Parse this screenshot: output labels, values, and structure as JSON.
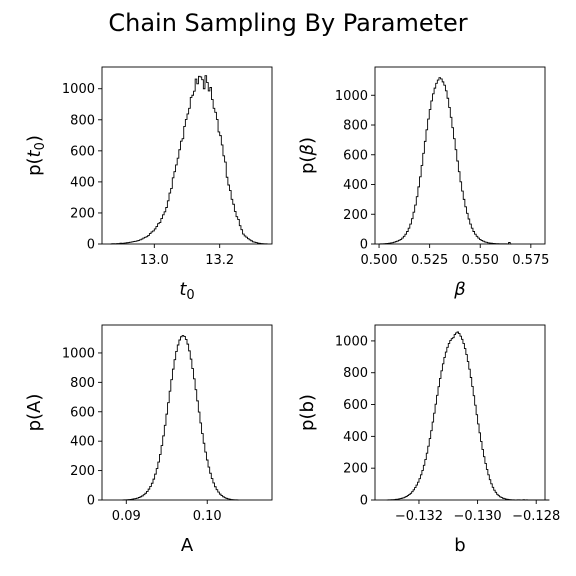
{
  "figure": {
    "title": "Chain Sampling By Parameter"
  },
  "chart_data": [
    {
      "type": "histogram",
      "panel": "top-left",
      "xlabel_base": "t",
      "xlabel_sub": "0",
      "ylabel_pre": "p(",
      "ylabel_base": "t",
      "ylabel_sub": "0",
      "ylabel_post": ")",
      "xlim": [
        12.84,
        13.36
      ],
      "ylim": [
        0,
        1140
      ],
      "xticks": [
        13.0,
        13.2
      ],
      "xtick_labels": [
        "13.0",
        "13.2"
      ],
      "yticks": [
        0,
        200,
        400,
        600,
        800,
        1000
      ],
      "ytick_labels": [
        "0",
        "200",
        "400",
        "600",
        "800",
        "1000"
      ],
      "x_start": 12.865,
      "bin_width": 0.005,
      "counts": [
        0,
        2,
        2,
        1,
        3,
        3,
        5,
        4,
        5,
        7,
        8,
        9,
        12,
        13,
        16,
        17,
        20,
        23,
        27,
        32,
        38,
        43,
        47,
        55,
        67,
        78,
        84,
        97,
        112,
        131,
        138,
        164,
        188,
        207,
        235,
        278,
        328,
        358,
        426,
        466,
        509,
        553,
        607,
        662,
        678,
        757,
        802,
        838,
        874,
        944,
        958,
        984,
        1062,
        1032,
        1080,
        1076,
        1058,
        1000,
        1084,
        1040,
        986,
        1008,
        930,
        874,
        848,
        802,
        722,
        698,
        638,
        568,
        528,
        430,
        380,
        344,
        288,
        256,
        210,
        176,
        158,
        118,
        92,
        64,
        52,
        44,
        34,
        27,
        21,
        14,
        12,
        9,
        6,
        4,
        3,
        2,
        1,
        1
      ]
    },
    {
      "type": "histogram",
      "panel": "top-right",
      "xlabel_base": "β",
      "xlabel_sub": "",
      "ylabel_pre": "p(",
      "ylabel_base": "β",
      "ylabel_sub": "",
      "ylabel_post": ")",
      "xlim": [
        0.498,
        0.582
      ],
      "ylim": [
        0,
        1190
      ],
      "xticks": [
        0.5,
        0.525,
        0.55,
        0.575
      ],
      "xtick_labels": [
        "0.500",
        "0.525",
        "0.550",
        "0.575"
      ],
      "yticks": [
        0,
        200,
        400,
        600,
        800,
        1000
      ],
      "ytick_labels": [
        "0",
        "200",
        "400",
        "600",
        "800",
        "1000"
      ],
      "x_start": 0.5,
      "bin_width": 0.0008,
      "counts": [
        0,
        1,
        1,
        2,
        3,
        4,
        5,
        7,
        9,
        12,
        16,
        20,
        25,
        31,
        40,
        52,
        66,
        84,
        106,
        134,
        170,
        214,
        262,
        318,
        384,
        452,
        528,
        610,
        690,
        768,
        840,
        904,
        962,
        1010,
        1048,
        1080,
        1102,
        1118,
        1110,
        1090,
        1068,
        1030,
        980,
        918,
        852,
        782,
        708,
        634,
        558,
        486,
        418,
        356,
        300,
        250,
        206,
        168,
        134,
        106,
        84,
        66,
        52,
        40,
        31,
        24,
        19,
        14,
        11,
        8,
        6,
        5,
        4,
        3,
        2,
        2,
        1,
        1,
        1,
        1,
        1,
        0,
        10,
        0
      ]
    },
    {
      "type": "histogram",
      "panel": "bottom-left",
      "xlabel_base": "A",
      "xlabel_sub": "",
      "ylabel_pre": "p(",
      "ylabel_base": "A",
      "ylabel_sub": "",
      "ylabel_post": ")",
      "xlim": [
        0.087,
        0.108
      ],
      "ylim": [
        0,
        1190
      ],
      "xticks": [
        0.09,
        0.1
      ],
      "xtick_labels": [
        "0.09",
        "0.10"
      ],
      "yticks": [
        0,
        200,
        400,
        600,
        800,
        1000
      ],
      "ytick_labels": [
        "0",
        "200",
        "400",
        "600",
        "800",
        "1000"
      ],
      "x_start": 0.0895,
      "bin_width": 0.0002,
      "counts": [
        0,
        1,
        1,
        2,
        3,
        4,
        6,
        8,
        10,
        13,
        17,
        22,
        28,
        36,
        46,
        58,
        74,
        92,
        114,
        142,
        176,
        214,
        258,
        310,
        370,
        436,
        508,
        584,
        662,
        740,
        818,
        890,
        954,
        1010,
        1054,
        1088,
        1110,
        1118,
        1112,
        1092,
        1060,
        1014,
        958,
        894,
        824,
        750,
        674,
        598,
        524,
        452,
        386,
        326,
        272,
        224,
        182,
        146,
        116,
        90,
        70,
        54,
        40,
        30,
        22,
        16,
        11,
        8,
        5,
        3,
        2,
        1,
        1,
        0
      ]
    },
    {
      "type": "histogram",
      "panel": "bottom-right",
      "xlabel_base": "b",
      "xlabel_sub": "",
      "ylabel_pre": "p(",
      "ylabel_base": "b",
      "ylabel_sub": "",
      "ylabel_post": ")",
      "xlim": [
        -0.1335,
        -0.1277
      ],
      "ylim": [
        0,
        1100
      ],
      "xticks": [
        -0.132,
        -0.13,
        -0.128
      ],
      "xtick_labels": [
        "−0.132",
        "−0.130",
        "−0.128"
      ],
      "yticks": [
        0,
        200,
        400,
        600,
        800,
        1000
      ],
      "ytick_labels": [
        "0",
        "200",
        "400",
        "600",
        "800",
        "1000"
      ],
      "x_start": -0.1331,
      "bin_width": 5e-05,
      "counts": [
        0,
        1,
        1,
        2,
        2,
        3,
        4,
        5,
        7,
        9,
        11,
        14,
        18,
        22,
        28,
        34,
        42,
        52,
        64,
        78,
        94,
        112,
        134,
        158,
        186,
        218,
        254,
        294,
        338,
        386,
        436,
        490,
        546,
        602,
        658,
        712,
        764,
        812,
        856,
        896,
        930,
        960,
        984,
        1002,
        1014,
        1020,
        1040,
        1050,
        1056,
        1046,
        1030,
        1010,
        984,
        952,
        914,
        870,
        822,
        770,
        714,
        656,
        596,
        536,
        478,
        422,
        368,
        318,
        272,
        230,
        192,
        158,
        128,
        102,
        80,
        62,
        48,
        36,
        27,
        20,
        15,
        11,
        8,
        6,
        4,
        3,
        2,
        1,
        1,
        0,
        0,
        1,
        1,
        0,
        0,
        2,
        0,
        1,
        0,
        0,
        0,
        0,
        0,
        0,
        0,
        0,
        0,
        0,
        0,
        0,
        0,
        0,
        0
      ]
    }
  ]
}
